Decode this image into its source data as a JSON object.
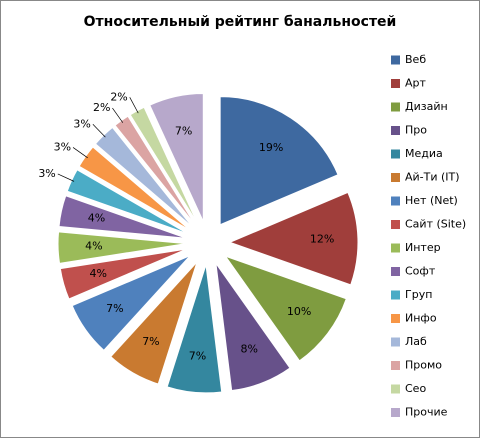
{
  "chart_data": {
    "type": "pie",
    "title": "Относительный рейтинг банальностей",
    "categories": [
      "Веб",
      "Арт",
      "Дизайн",
      "Про",
      "Медиа",
      "Ай-Ти (IT)",
      "Нет (Net)",
      "Сайт (Site)",
      "Интер",
      "Софт",
      "Груп",
      "Инфо",
      "Лаб",
      "Промо",
      "Сео",
      "Прочие"
    ],
    "values": [
      19,
      12,
      10,
      8,
      7,
      7,
      7,
      4,
      4,
      4,
      3,
      3,
      3,
      2,
      2,
      7
    ],
    "value_labels": [
      "19%",
      "12%",
      "10%",
      "8%",
      "7%",
      "7%",
      "7%",
      "4%",
      "4%",
      "4%",
      "3%",
      "3%",
      "3%",
      "2%",
      "2%",
      "7%"
    ],
    "colors": [
      "#3e69a0",
      "#a03e3b",
      "#7f9c40",
      "#67518a",
      "#34879f",
      "#c97a30",
      "#4f81bd",
      "#c0504d",
      "#9bbb59",
      "#8064a2",
      "#4bacc6",
      "#f79646",
      "#a5b8da",
      "#dba4a3",
      "#c5d8a2",
      "#b7a8cb"
    ],
    "legend": "right"
  }
}
